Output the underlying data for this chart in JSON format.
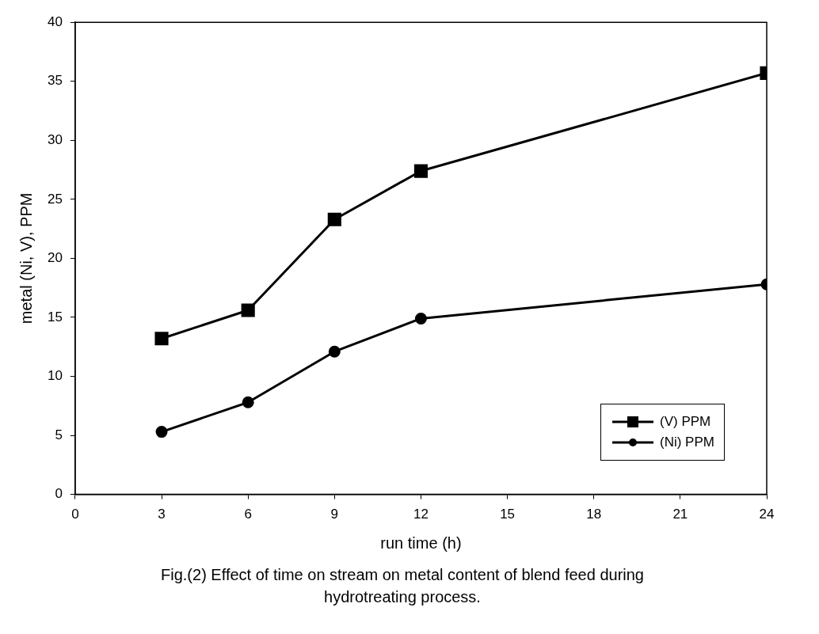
{
  "chart_data": {
    "type": "line",
    "title": "Fig.(2) Effect of time on stream on metal content of blend feed during hydrotreating process.",
    "xlabel": "run time (h)",
    "ylabel": "metal (Ni, V), PPM",
    "x": [
      3,
      6,
      9,
      12,
      24
    ],
    "series": [
      {
        "name": "(V) PPM",
        "color": "#000000",
        "marker": "square",
        "values": [
          13.2,
          15.6,
          23.3,
          27.4,
          35.7
        ]
      },
      {
        "name": "(Ni) PPM",
        "color": "#000000",
        "marker": "circle",
        "values": [
          5.3,
          7.8,
          12.1,
          14.9,
          17.8
        ]
      }
    ],
    "xlim": [
      0,
      24
    ],
    "xticks": [
      0,
      3,
      6,
      9,
      12,
      15,
      18,
      21,
      24
    ],
    "ylim": [
      0,
      40
    ],
    "yticks": [
      0,
      5,
      10,
      15,
      20,
      25,
      30,
      35,
      40
    ],
    "grid": false,
    "legend": "bottom right",
    "line_style": "solid"
  }
}
